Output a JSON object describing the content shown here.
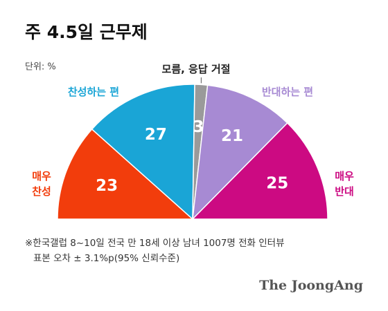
{
  "chart_data": {
    "type": "semicircle",
    "title": "주 4.5일 근무제",
    "unit": "단위: %",
    "categories": [
      "매우\n찬성",
      "찬성하는 편",
      "모름, 응답 거절",
      "반대하는 편",
      "매우\n반대"
    ],
    "values": [
      23,
      27,
      3,
      21,
      25
    ],
    "colors": [
      "#f23d0c",
      "#1aa5d6",
      "#9a9a9a",
      "#a78ad3",
      "#cc0a82"
    ],
    "notes": [
      "※한국갤럽 8~10일 전국 만 18세 이상 남녀 1007명 전화 인터뷰",
      "표본 오차 ± 3.1%p(95% 신뢰수준)"
    ],
    "source": "The JoongAng"
  }
}
